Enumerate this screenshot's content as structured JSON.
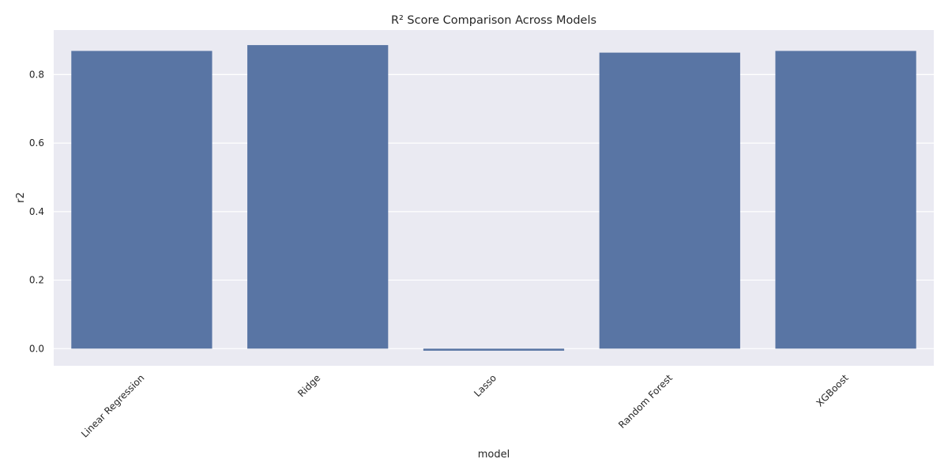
{
  "chart_data": {
    "type": "bar",
    "title": "R² Score Comparison Across Models",
    "xlabel": "model",
    "ylabel": "r2",
    "categories": [
      "Linear Regression",
      "Ridge",
      "Lasso",
      "Random Forest",
      "XGBoost"
    ],
    "values": [
      0.869,
      0.886,
      -0.006,
      0.864,
      0.869
    ],
    "yticks": [
      "0.0",
      "0.2",
      "0.4",
      "0.6",
      "0.8"
    ],
    "ylim": [
      -0.05,
      0.93
    ],
    "grid": true,
    "legend": "none",
    "colors": {
      "bar": "#5975a4",
      "plot_bg": "#eaeaf2",
      "grid": "#ffffff",
      "text": "#262626"
    }
  }
}
